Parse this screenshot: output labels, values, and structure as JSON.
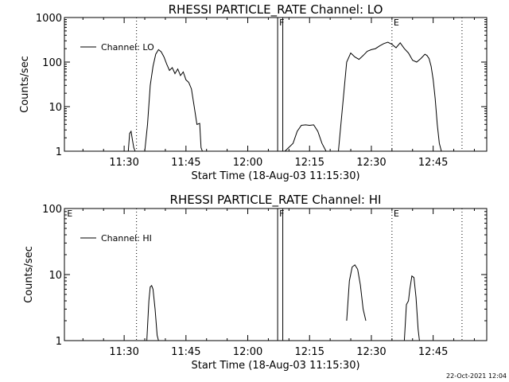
{
  "chart_data": [
    {
      "type": "line",
      "title": "RHESSI PARTICLE_RATE Channel: LO",
      "xlabel": "Start Time (18-Aug-03 11:15:30)",
      "ylabel": "Counts/sec",
      "y_scale": "log",
      "ylim": [
        1,
        1000
      ],
      "xlim": [
        "11:15:30",
        "12:58:00"
      ],
      "x_ticks": [
        "11:30",
        "11:45",
        "12:00",
        "12:15",
        "12:30",
        "12:45"
      ],
      "y_ticks": [
        "1",
        "10",
        "100",
        "1000"
      ],
      "grid": false,
      "legend_position": "top-left",
      "series": [
        {
          "name": "Channel: LO",
          "color": "#000000",
          "segments": [
            [
              [
                "11:31:00",
                1
              ],
              [
                "11:31:20",
                2.5
              ],
              [
                "11:31:40",
                2.8
              ],
              [
                "11:32:00",
                1.8
              ],
              [
                "11:32:20",
                1.2
              ],
              [
                "11:32:40",
                1
              ]
            ],
            [
              [
                "11:35:00",
                1
              ],
              [
                "11:35:40",
                4
              ],
              [
                "11:36:20",
                30
              ],
              [
                "11:37:00",
                80
              ],
              [
                "11:37:40",
                150
              ],
              [
                "11:38:20",
                190
              ],
              [
                "11:39:00",
                170
              ],
              [
                "11:39:40",
                130
              ],
              [
                "11:40:20",
                90
              ],
              [
                "11:41:00",
                65
              ],
              [
                "11:41:40",
                75
              ],
              [
                "11:42:20",
                55
              ],
              [
                "11:43:00",
                70
              ],
              [
                "11:43:40",
                50
              ],
              [
                "11:44:20",
                60
              ],
              [
                "11:45:00",
                40
              ],
              [
                "11:45:40",
                35
              ],
              [
                "11:46:20",
                25
              ],
              [
                "11:47:00",
                10
              ],
              [
                "11:47:40",
                4
              ],
              [
                "11:48:20",
                4.2
              ],
              [
                "11:48:40",
                1.2
              ],
              [
                "11:49:00",
                1
              ]
            ],
            [
              [
                "12:09:00",
                1
              ],
              [
                "12:11:00",
                1.5
              ],
              [
                "12:12:00",
                2.8
              ],
              [
                "12:13:00",
                3.8
              ],
              [
                "12:14:00",
                3.9
              ],
              [
                "12:15:00",
                3.8
              ],
              [
                "12:16:00",
                3.9
              ],
              [
                "12:17:00",
                2.8
              ],
              [
                "12:18:00",
                1.5
              ],
              [
                "12:19:00",
                1
              ]
            ],
            [
              [
                "12:22:00",
                1
              ],
              [
                "12:23:00",
                10
              ],
              [
                "12:24:00",
                100
              ],
              [
                "12:25:00",
                160
              ],
              [
                "12:26:00",
                130
              ],
              [
                "12:27:00",
                115
              ],
              [
                "12:28:00",
                140
              ],
              [
                "12:29:00",
                175
              ],
              [
                "12:30:00",
                190
              ],
              [
                "12:31:00",
                200
              ],
              [
                "12:32:00",
                230
              ],
              [
                "12:33:00",
                260
              ],
              [
                "12:34:00",
                280
              ],
              [
                "12:35:00",
                250
              ],
              [
                "12:36:00",
                210
              ],
              [
                "12:37:00",
                270
              ],
              [
                "12:38:00",
                200
              ],
              [
                "12:39:00",
                160
              ],
              [
                "12:40:00",
                110
              ],
              [
                "12:41:00",
                100
              ],
              [
                "12:42:00",
                120
              ],
              [
                "12:43:00",
                150
              ],
              [
                "12:43:30",
                140
              ],
              [
                "12:44:00",
                120
              ],
              [
                "12:44:30",
                80
              ],
              [
                "12:45:00",
                40
              ],
              [
                "12:45:30",
                15
              ],
              [
                "12:46:00",
                4
              ],
              [
                "12:46:30",
                1.5
              ],
              [
                "12:47:00",
                1
              ]
            ]
          ]
        }
      ],
      "annotations": [
        {
          "label": "",
          "time": "11:33:00",
          "style": "dotted"
        },
        {
          "label": "F",
          "time": "12:07:15",
          "style": "solid"
        },
        {
          "label": "",
          "time": "12:08:30",
          "style": "solid"
        },
        {
          "label": "E",
          "time": "12:35:00",
          "style": "dotted"
        },
        {
          "label": "",
          "time": "12:52:00",
          "style": "dotted"
        }
      ]
    },
    {
      "type": "line",
      "title": "RHESSI PARTICLE_RATE Channel: HI",
      "xlabel": "Start Time (18-Aug-03 11:15:30)",
      "ylabel": "Counts/sec",
      "y_scale": "log",
      "ylim": [
        1,
        100
      ],
      "xlim": [
        "11:15:30",
        "12:58:00"
      ],
      "x_ticks": [
        "11:30",
        "11:45",
        "12:00",
        "12:15",
        "12:30",
        "12:45"
      ],
      "y_ticks": [
        "1",
        "10",
        "100"
      ],
      "grid": false,
      "legend_position": "top-left",
      "series": [
        {
          "name": "Channel: HI",
          "color": "#000000",
          "segments": [
            [
              [
                "11:35:30",
                1
              ],
              [
                "11:36:00",
                4
              ],
              [
                "11:36:20",
                6.5
              ],
              [
                "11:36:40",
                6.8
              ],
              [
                "11:37:00",
                6
              ],
              [
                "11:37:30",
                3
              ],
              [
                "11:38:00",
                1.2
              ],
              [
                "11:38:20",
                1
              ]
            ],
            [
              [
                "12:24:00",
                2
              ],
              [
                "12:24:40",
                8
              ],
              [
                "12:25:20",
                13
              ],
              [
                "12:26:00",
                14
              ],
              [
                "12:26:40",
                12
              ],
              [
                "12:27:20",
                7
              ],
              [
                "12:28:00",
                3
              ],
              [
                "12:28:40",
                2
              ]
            ],
            [
              [
                "12:38:00",
                1
              ],
              [
                "12:38:30",
                3.5
              ],
              [
                "12:39:00",
                4
              ],
              [
                "12:39:20",
                6
              ],
              [
                "12:39:50",
                9.5
              ],
              [
                "12:40:20",
                9
              ],
              [
                "12:40:50",
                4.5
              ],
              [
                "12:41:20",
                1.5
              ],
              [
                "12:41:40",
                1
              ]
            ]
          ]
        }
      ],
      "annotations": [
        {
          "label": "E",
          "time": "11:15:45",
          "style": "none"
        },
        {
          "label": "",
          "time": "11:33:00",
          "style": "dotted"
        },
        {
          "label": "F",
          "time": "12:07:15",
          "style": "solid"
        },
        {
          "label": "",
          "time": "12:08:30",
          "style": "solid"
        },
        {
          "label": "E",
          "time": "12:35:00",
          "style": "dotted"
        },
        {
          "label": "",
          "time": "12:52:00",
          "style": "dotted"
        }
      ]
    }
  ],
  "footer": {
    "timestamp": "22-Oct-2021 12:04"
  }
}
